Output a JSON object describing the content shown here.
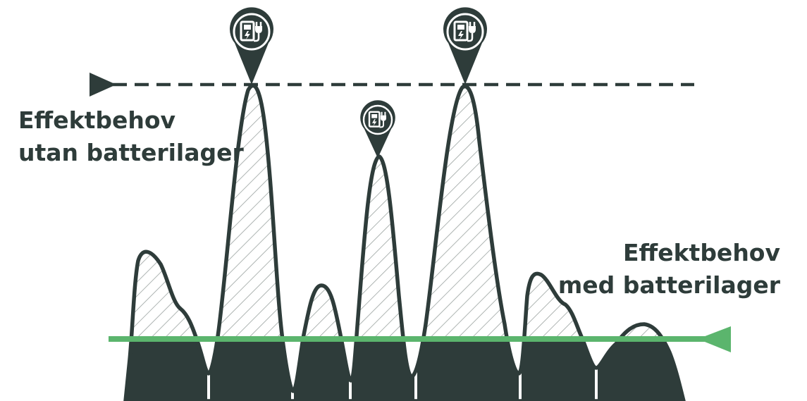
{
  "labels": {
    "without_battery": [
      "Effektbehov",
      "utan batterilager"
    ],
    "with_battery": [
      "Effektbehov",
      "med batterilager"
    ]
  },
  "colors": {
    "dark": "#2e3c3a",
    "green": "#5bb56d",
    "hatch": "#9aa2a0",
    "white": "#ffffff"
  },
  "icons": [
    "ev-charger-pin-icon",
    "ev-charger-pin-icon",
    "ev-charger-pin-icon"
  ]
}
